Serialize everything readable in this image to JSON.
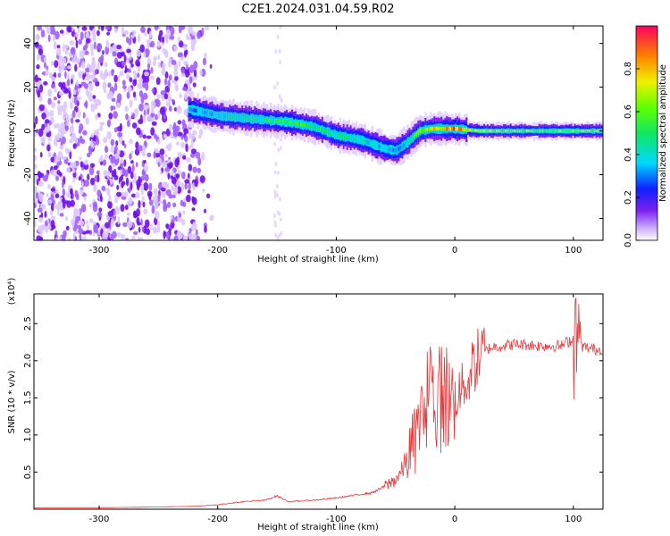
{
  "title": "C2E1.2024.031.04.59.R02",
  "chart_data": [
    {
      "type": "heatmap",
      "xlabel": "Height of straight line (km)",
      "ylabel": "Frequency (Hz)",
      "xlim": [
        -355,
        125
      ],
      "ylim": [
        -50,
        48
      ],
      "xticks": [
        -300,
        -200,
        -100,
        0,
        100
      ],
      "xtick_labels": [
        "-300",
        "-200",
        "-100",
        "0",
        "100"
      ],
      "yticks": [
        -40,
        -20,
        0,
        20,
        40
      ],
      "ytick_labels": [
        "-40",
        "-20",
        "0",
        "20",
        "40"
      ],
      "colorbar": {
        "label": "Normalized spectral amplitude",
        "range": [
          0,
          1
        ],
        "ticks": [
          0.0,
          0.2,
          0.4,
          0.6,
          0.8
        ],
        "tick_labels": [
          "0.0",
          "0.2",
          "0.4",
          "0.6",
          "0.8"
        ]
      },
      "noise_region": {
        "x": [
          -355,
          -210
        ],
        "y": [
          -50,
          48
        ]
      },
      "ridge": {
        "x": [
          -225,
          -200,
          -180,
          -160,
          -140,
          -120,
          -100,
          -80,
          -60,
          -50,
          -40,
          -30,
          -20,
          -10,
          0,
          20,
          60,
          100,
          125
        ],
        "y": [
          10,
          7,
          6,
          5,
          4,
          2,
          -2,
          -4,
          -8,
          -9,
          -5,
          0,
          1,
          1,
          1,
          0,
          0,
          0,
          0
        ],
        "amplitude": [
          0.3,
          0.4,
          0.45,
          0.45,
          0.5,
          0.5,
          0.45,
          0.4,
          0.35,
          0.3,
          0.4,
          0.6,
          0.75,
          0.8,
          0.85,
          0.7,
          0.6,
          0.6,
          0.6
        ]
      }
    },
    {
      "type": "line",
      "xlabel": "Height of straight line (km)",
      "ylabel": "SNR (10 * v/v)",
      "y_multiplier_label": "(x10⁴)",
      "xlim": [
        -355,
        125
      ],
      "ylim": [
        0,
        2.9
      ],
      "xticks": [
        -300,
        -200,
        -100,
        0,
        100
      ],
      "xtick_labels": [
        "-300",
        "-200",
        "-100",
        "0",
        "100"
      ],
      "yticks": [
        0.5,
        1.0,
        1.5,
        2.0,
        2.5
      ],
      "ytick_labels": [
        "0.5",
        "1.0",
        "1.5",
        "2.0",
        "2.5"
      ],
      "series": [
        {
          "color": "#e8383a",
          "x": [
            -355,
            -300,
            -250,
            -220,
            -200,
            -180,
            -160,
            -150,
            -140,
            -120,
            -100,
            -80,
            -70,
            -60,
            -50,
            -45,
            -40,
            -35,
            -30,
            -25,
            -20,
            -15,
            -10,
            -5,
            0,
            5,
            10,
            15,
            20,
            25,
            30,
            40,
            50,
            60,
            70,
            80,
            90,
            95,
            100,
            102,
            104,
            106,
            110,
            120,
            125
          ],
          "y": [
            0.02,
            0.02,
            0.03,
            0.04,
            0.06,
            0.1,
            0.12,
            0.18,
            0.1,
            0.12,
            0.15,
            0.2,
            0.22,
            0.3,
            0.4,
            0.5,
            0.7,
            0.9,
            1.1,
            1.3,
            1.5,
            1.4,
            1.6,
            1.45,
            1.5,
            1.6,
            1.75,
            1.9,
            2.05,
            2.12,
            2.18,
            2.2,
            2.22,
            2.22,
            2.2,
            2.2,
            2.2,
            2.25,
            2.3,
            2.9,
            2.3,
            2.2,
            2.18,
            2.15,
            2.15
          ]
        }
      ]
    }
  ],
  "colors": {
    "line": "#e8383a",
    "noise": "#7a1ff0",
    "axis": "#000000"
  }
}
